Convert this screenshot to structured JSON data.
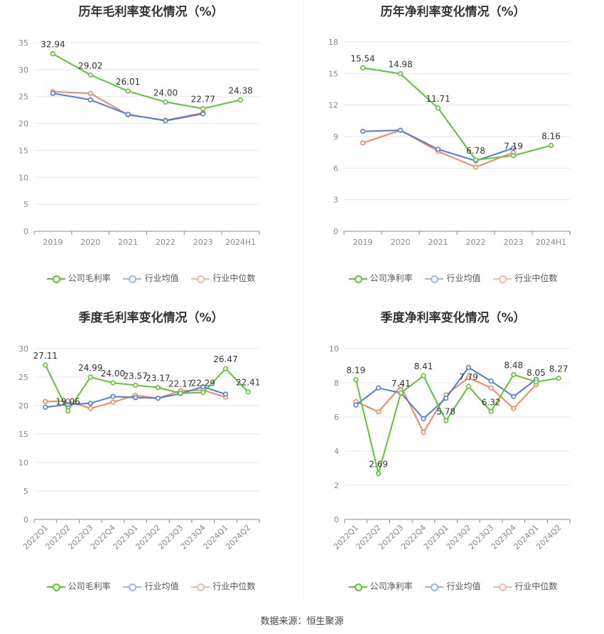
{
  "colors": {
    "company": "#5bc72e",
    "industry_avg": "#4a7fe0",
    "industry_median": "#f2875f",
    "grid": "#e6e6e6",
    "axis_text": "#888888"
  },
  "legend_labels": {
    "gross": [
      "公司毛利率",
      "行业均值",
      "行业中位数"
    ],
    "net": [
      "公司净利率",
      "行业均值",
      "行业中位数"
    ]
  },
  "source": "数据来源：恒生聚源",
  "chart_data": [
    {
      "type": "line",
      "title": "历年毛利率变化情况（%）",
      "categories": [
        "2019",
        "2020",
        "2021",
        "2022",
        "2023",
        "2024H1"
      ],
      "ylim": [
        0,
        35
      ],
      "yticks": [
        0,
        5,
        10,
        15,
        20,
        25,
        30,
        35
      ],
      "grid": true,
      "legend_position": "bottom",
      "series": [
        {
          "name": "公司毛利率",
          "values": [
            32.94,
            29.02,
            26.01,
            24.0,
            22.77,
            24.38
          ],
          "labels": [
            "32.94",
            "29.02",
            "26.01",
            "24.00",
            "22.77",
            "24.38"
          ]
        },
        {
          "name": "行业均值",
          "values": [
            25.6,
            24.4,
            21.7,
            20.5,
            21.8,
            null
          ]
        },
        {
          "name": "行业中位数",
          "values": [
            25.9,
            25.6,
            21.6,
            20.6,
            22.0,
            null
          ]
        }
      ]
    },
    {
      "type": "line",
      "title": "历年净利率变化情况（%）",
      "categories": [
        "2019",
        "2020",
        "2021",
        "2022",
        "2023",
        "2024H1"
      ],
      "ylim": [
        0,
        18
      ],
      "yticks": [
        0,
        3,
        6,
        9,
        12,
        15,
        18
      ],
      "grid": true,
      "legend_position": "bottom",
      "series": [
        {
          "name": "公司净利率",
          "values": [
            15.54,
            14.98,
            11.71,
            6.78,
            7.19,
            8.16
          ],
          "labels": [
            "15.54",
            "14.98",
            "11.71",
            "6.78",
            "7.19",
            "8.16"
          ]
        },
        {
          "name": "行业均值",
          "values": [
            9.5,
            9.6,
            7.8,
            6.7,
            7.9,
            null
          ]
        },
        {
          "name": "行业中位数",
          "values": [
            8.4,
            9.6,
            7.6,
            6.1,
            7.5,
            null
          ]
        }
      ]
    },
    {
      "type": "line",
      "title": "季度毛利率变化情况（%）",
      "categories": [
        "2022Q1",
        "2022Q2",
        "2022Q3",
        "2022Q4",
        "2023Q1",
        "2023Q2",
        "2023Q3",
        "2023Q4",
        "2024Q1",
        "2024Q2"
      ],
      "ylim": [
        0,
        30
      ],
      "yticks": [
        0,
        5,
        10,
        15,
        20,
        25,
        30
      ],
      "grid": true,
      "legend_position": "bottom",
      "series": [
        {
          "name": "公司毛利率",
          "values": [
            27.11,
            19.06,
            24.99,
            24.0,
            23.57,
            23.17,
            22.17,
            22.29,
            26.47,
            22.41
          ],
          "labels": [
            "27.11",
            "19.06",
            "24.99",
            "24.00",
            "23.57",
            "23.17",
            "22.17",
            "22.29",
            "26.47",
            "22.41"
          ]
        },
        {
          "name": "行业均值",
          "values": [
            19.7,
            20.2,
            20.4,
            21.6,
            21.4,
            21.3,
            22.1,
            23.3,
            22.0,
            null
          ]
        },
        {
          "name": "行业中位数",
          "values": [
            20.7,
            20.8,
            19.5,
            20.6,
            21.8,
            21.3,
            22.6,
            22.7,
            21.5,
            null
          ]
        }
      ]
    },
    {
      "type": "line",
      "title": "季度净利率变化情况（%）",
      "categories": [
        "2022Q1",
        "2022Q2",
        "2022Q3",
        "2022Q4",
        "2023Q1",
        "2023Q2",
        "2023Q3",
        "2023Q4",
        "2024Q1",
        "2024Q2"
      ],
      "ylim": [
        0,
        10
      ],
      "yticks": [
        0,
        2,
        4,
        6,
        8,
        10
      ],
      "grid": true,
      "legend_position": "bottom",
      "series": [
        {
          "name": "公司净利率",
          "values": [
            8.19,
            2.69,
            7.41,
            8.41,
            5.78,
            7.79,
            6.32,
            8.48,
            8.05,
            8.27
          ],
          "labels": [
            "8.19",
            "2.69",
            "7.41",
            "8.41",
            "5.78",
            "7.79",
            "6.32",
            "8.48",
            "8.05",
            "8.27"
          ]
        },
        {
          "name": "行业均值",
          "values": [
            6.7,
            7.7,
            7.4,
            5.9,
            7.1,
            8.9,
            8.1,
            7.2,
            8.2,
            null
          ]
        },
        {
          "name": "行业中位数",
          "values": [
            6.9,
            6.3,
            7.8,
            5.1,
            7.3,
            8.3,
            7.7,
            6.5,
            7.9,
            null
          ]
        }
      ]
    }
  ]
}
